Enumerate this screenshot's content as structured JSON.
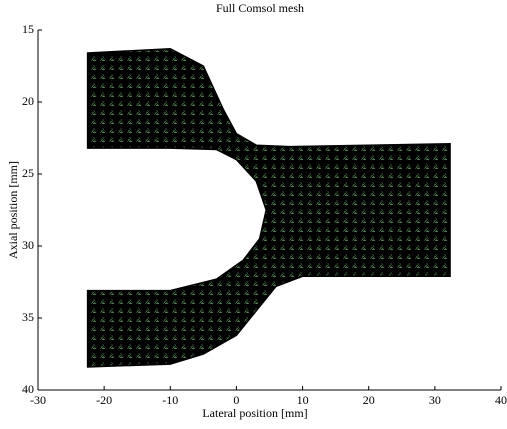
{
  "chart_data": {
    "type": "mesh",
    "title": "Full Comsol mesh",
    "xlabel": "Lateral position [mm]",
    "ylabel": "Axial position [mm]",
    "xlim": [
      -30,
      40
    ],
    "ylim": [
      40,
      15
    ],
    "y_reversed": true,
    "xticks": [
      -30,
      -20,
      -10,
      0,
      10,
      20,
      30,
      40
    ],
    "yticks": [
      15,
      20,
      25,
      30,
      35,
      40
    ],
    "edge_color": "#000000",
    "face_color": "#9be89b",
    "series": [
      {
        "x": [
          -22.5,
          -10,
          -5,
          -2,
          0,
          3,
          8,
          32.3,
          32.3,
          10,
          6,
          3,
          0,
          -5,
          -10,
          -22.5,
          -22.5,
          -10,
          -3,
          1,
          3.5,
          4.5,
          3,
          0,
          -3,
          -10,
          -22.5
        ],
        "values": [
          16.6,
          16.3,
          17.5,
          20.5,
          22.2,
          23.0,
          23.1,
          22.9,
          32.1,
          32.1,
          32.8,
          34.5,
          36.2,
          37.5,
          38.2,
          38.4,
          33.1,
          33.1,
          32.3,
          31,
          29.5,
          27.5,
          25.5,
          24,
          23.3,
          23.2,
          23.2
        ]
      }
    ]
  }
}
